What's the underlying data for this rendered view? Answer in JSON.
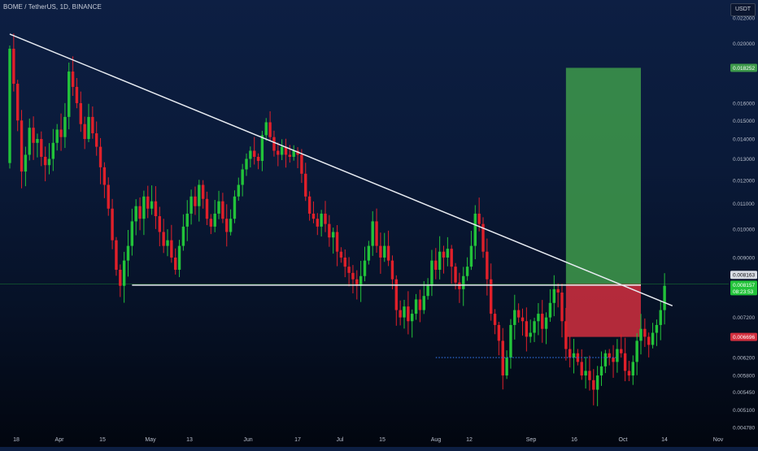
{
  "header": {
    "symbol_title": "BOME / TetherUS, 1D, BINANCE",
    "currency": "USDT"
  },
  "colors": {
    "up": "#22c33a",
    "down": "#e0202a",
    "trendline": "#e8ecf2",
    "profit_zone": "#3e9a4b",
    "loss_zone": "#d22f3e",
    "dotted_support": "#2e6bd6",
    "axis_text": "#b8bfcc"
  },
  "chart_data": {
    "type": "candlestick",
    "title": "BOME / TetherUS, 1D, BINANCE",
    "y_scale": "log",
    "ylim": [
      0.00475,
      0.0235
    ],
    "x_tick_labels": [
      "18",
      "Apr",
      "15",
      "May",
      "13",
      "Jun",
      "17",
      "Jul",
      "15",
      "Aug",
      "12",
      "Sep",
      "16",
      "Oct",
      "14",
      "Nov"
    ],
    "y_tick_labels": [
      "0.004780",
      "0.005100",
      "0.005450",
      "0.005800",
      "0.006200",
      "0.007200",
      "0.009000",
      "0.010000",
      "0.011000",
      "0.012000",
      "0.013000",
      "0.014000",
      "0.015000",
      "0.016000",
      "0.020000",
      "0.022000"
    ],
    "price_labels": [
      {
        "text": "0.018252",
        "value": 0.018252,
        "color": "#3e9a4b"
      },
      {
        "text": "0.008163",
        "value": 0.008163,
        "color": "#d8dce4"
      },
      {
        "text": "0.008157",
        "value": 0.008157,
        "color": "#22c33a"
      },
      {
        "text": "08:23:53",
        "value": 0.008157,
        "color": "#22c33a"
      },
      {
        "text": "0.006696",
        "value": 0.006696,
        "color": "#d22f3e"
      }
    ],
    "closes": [
      0.0196,
      0.0172,
      0.015,
      0.0124,
      0.0132,
      0.0146,
      0.0138,
      0.014,
      0.0131,
      0.0127,
      0.013,
      0.0138,
      0.0145,
      0.0141,
      0.0152,
      0.018,
      0.017,
      0.016,
      0.0148,
      0.014,
      0.0152,
      0.0143,
      0.0136,
      0.0126,
      0.0118,
      0.0108,
      0.0096,
      0.0086,
      0.0081,
      0.0089,
      0.0094,
      0.0103,
      0.0109,
      0.0104,
      0.0113,
      0.0108,
      0.0111,
      0.0105,
      0.0099,
      0.0094,
      0.0096,
      0.009,
      0.0086,
      0.0094,
      0.0101,
      0.0106,
      0.0113,
      0.0109,
      0.0118,
      0.0112,
      0.0104,
      0.0101,
      0.0106,
      0.0111,
      0.0104,
      0.0099,
      0.0104,
      0.0113,
      0.0118,
      0.0125,
      0.013,
      0.0134,
      0.0131,
      0.0129,
      0.0142,
      0.0149,
      0.0141,
      0.0134,
      0.0132,
      0.0136,
      0.0132,
      0.0131,
      0.0134,
      0.0132,
      0.0123,
      0.0113,
      0.0106,
      0.0104,
      0.0101,
      0.0106,
      0.0102,
      0.0097,
      0.0099,
      0.0092,
      0.009,
      0.0087,
      0.0085,
      0.0083,
      0.0081,
      0.0084,
      0.0089,
      0.0094,
      0.0103,
      0.0094,
      0.009,
      0.0094,
      0.0089,
      0.0083,
      0.0074,
      0.0072,
      0.0075,
      0.0071,
      0.0073,
      0.0077,
      0.0074,
      0.0078,
      0.0081,
      0.0089,
      0.0086,
      0.0092,
      0.009,
      0.0093,
      0.0087,
      0.0082,
      0.008,
      0.0084,
      0.0087,
      0.0094,
      0.0106,
      0.0102,
      0.0092,
      0.0083,
      0.0073,
      0.007,
      0.0066,
      0.0058,
      0.0062,
      0.007,
      0.0074,
      0.0072,
      0.0071,
      0.0067,
      0.0068,
      0.0071,
      0.0073,
      0.0069,
      0.0072,
      0.0076,
      0.008,
      0.0079,
      0.0071,
      0.0064,
      0.0062,
      0.0063,
      0.0061,
      0.0058,
      0.0059,
      0.0057,
      0.0055,
      0.0058,
      0.006,
      0.0063,
      0.0062,
      0.0061,
      0.0064,
      0.0063,
      0.0059,
      0.0058,
      0.0061,
      0.0066,
      0.0069,
      0.0067,
      0.0065,
      0.0068,
      0.007,
      0.0074,
      0.0081
    ]
  },
  "drawings": {
    "trendline": {
      "from": {
        "x": 0,
        "price": 0.0207
      },
      "to": {
        "x": 168,
        "price": 0.00752
      }
    },
    "horizontal_line": {
      "from_x": 31,
      "to_x": 160,
      "price": 0.00812
    },
    "faint_horizontal": {
      "price": 0.00815
    },
    "dotted_support": {
      "from_x": 108,
      "to_x": 154,
      "price": 0.0062
    },
    "position": {
      "from_x": 141,
      "to_x": 160,
      "entry": 0.008163,
      "target": 0.018252,
      "stop": 0.006696
    }
  }
}
